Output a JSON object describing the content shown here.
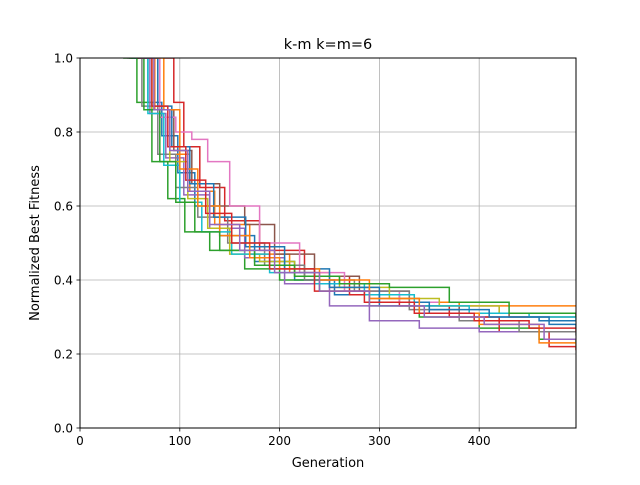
{
  "chart_data": {
    "type": "line",
    "title": "k-m k=m=6",
    "xlabel": "Generation",
    "ylabel": "Normalized Best Fitness",
    "xlim": [
      0,
      497
    ],
    "ylim": [
      0.0,
      1.0
    ],
    "xticks": [
      0,
      100,
      200,
      300,
      400
    ],
    "yticks": [
      0.0,
      0.2,
      0.4,
      0.6,
      0.8,
      1.0
    ],
    "xtick_labels": [
      "0",
      "100",
      "200",
      "300",
      "400"
    ],
    "ytick_labels": [
      "0.0",
      "0.2",
      "0.4",
      "0.6",
      "0.8",
      "1.0"
    ],
    "grid": true,
    "legend": "none",
    "line_style": "step",
    "series": [
      {
        "color": "#1f77b4",
        "points": [
          [
            52,
            1.0
          ],
          [
            68,
            0.88
          ],
          [
            82,
            0.79
          ],
          [
            98,
            0.69
          ],
          [
            115,
            0.6
          ],
          [
            140,
            0.52
          ],
          [
            175,
            0.45
          ],
          [
            215,
            0.4
          ],
          [
            255,
            0.36
          ],
          [
            300,
            0.33
          ],
          [
            350,
            0.31
          ],
          [
            400,
            0.3
          ],
          [
            460,
            0.29
          ],
          [
            497,
            0.29
          ]
        ]
      },
      {
        "color": "#ff7f0e",
        "points": [
          [
            60,
            1.0
          ],
          [
            75,
            0.86
          ],
          [
            90,
            0.74
          ],
          [
            110,
            0.64
          ],
          [
            135,
            0.55
          ],
          [
            170,
            0.47
          ],
          [
            210,
            0.42
          ],
          [
            250,
            0.38
          ],
          [
            290,
            0.35
          ],
          [
            340,
            0.34
          ],
          [
            380,
            0.33
          ],
          [
            440,
            0.33
          ],
          [
            497,
            0.33
          ]
        ]
      },
      {
        "color": "#2ca02c",
        "points": [
          [
            44,
            1.0
          ],
          [
            57,
            0.88
          ],
          [
            72,
            0.72
          ],
          [
            88,
            0.62
          ],
          [
            105,
            0.53
          ],
          [
            130,
            0.48
          ],
          [
            165,
            0.43
          ],
          [
            200,
            0.4
          ],
          [
            240,
            0.37
          ],
          [
            290,
            0.33
          ],
          [
            340,
            0.3
          ],
          [
            400,
            0.27
          ],
          [
            460,
            0.24
          ],
          [
            497,
            0.23
          ]
        ]
      },
      {
        "color": "#d62728",
        "points": [
          [
            84,
            1.0
          ],
          [
            94,
            0.88
          ],
          [
            104,
            0.76
          ],
          [
            120,
            0.65
          ],
          [
            145,
            0.56
          ],
          [
            180,
            0.48
          ],
          [
            225,
            0.41
          ],
          [
            270,
            0.36
          ],
          [
            320,
            0.33
          ],
          [
            370,
            0.3
          ],
          [
            420,
            0.26
          ],
          [
            470,
            0.22
          ],
          [
            497,
            0.21
          ]
        ]
      },
      {
        "color": "#9467bd",
        "points": [
          [
            56,
            1.0
          ],
          [
            70,
            0.85
          ],
          [
            86,
            0.73
          ],
          [
            104,
            0.63
          ],
          [
            130,
            0.54
          ],
          [
            165,
            0.46
          ],
          [
            205,
            0.39
          ],
          [
            250,
            0.33
          ],
          [
            290,
            0.29
          ],
          [
            340,
            0.27
          ],
          [
            400,
            0.26
          ],
          [
            460,
            0.26
          ],
          [
            497,
            0.26
          ]
        ]
      },
      {
        "color": "#8c564b",
        "points": [
          [
            62,
            1.0
          ],
          [
            78,
            0.86
          ],
          [
            94,
            0.75
          ],
          [
            112,
            0.66
          ],
          [
            140,
            0.6
          ],
          [
            165,
            0.55
          ],
          [
            195,
            0.47
          ],
          [
            235,
            0.41
          ],
          [
            280,
            0.37
          ],
          [
            330,
            0.33
          ],
          [
            380,
            0.31
          ],
          [
            430,
            0.3
          ],
          [
            497,
            0.3
          ]
        ]
      },
      {
        "color": "#e377c2",
        "points": [
          [
            66,
            1.0
          ],
          [
            80,
            0.84
          ],
          [
            96,
            0.8
          ],
          [
            112,
            0.78
          ],
          [
            128,
            0.72
          ],
          [
            150,
            0.6
          ],
          [
            180,
            0.5
          ],
          [
            220,
            0.42
          ],
          [
            265,
            0.37
          ],
          [
            320,
            0.34
          ],
          [
            360,
            0.33
          ],
          [
            420,
            0.31
          ],
          [
            497,
            0.31
          ]
        ]
      },
      {
        "color": "#7f7f7f",
        "points": [
          [
            48,
            1.0
          ],
          [
            62,
            0.87
          ],
          [
            78,
            0.74
          ],
          [
            96,
            0.65
          ],
          [
            118,
            0.57
          ],
          [
            148,
            0.5
          ],
          [
            185,
            0.44
          ],
          [
            225,
            0.4
          ],
          [
            275,
            0.37
          ],
          [
            330,
            0.32
          ],
          [
            380,
            0.29
          ],
          [
            440,
            0.26
          ],
          [
            497,
            0.25
          ]
        ]
      },
      {
        "color": "#bcbd22",
        "points": [
          [
            58,
            1.0
          ],
          [
            72,
            0.86
          ],
          [
            90,
            0.72
          ],
          [
            108,
            0.62
          ],
          [
            128,
            0.54
          ],
          [
            150,
            0.47
          ],
          [
            180,
            0.45
          ],
          [
            215,
            0.41
          ],
          [
            260,
            0.38
          ],
          [
            310,
            0.35
          ],
          [
            360,
            0.33
          ],
          [
            420,
            0.31
          ],
          [
            497,
            0.3
          ]
        ]
      },
      {
        "color": "#17becf",
        "points": [
          [
            54,
            1.0
          ],
          [
            68,
            0.85
          ],
          [
            84,
            0.71
          ],
          [
            100,
            0.61
          ],
          [
            122,
            0.53
          ],
          [
            152,
            0.47
          ],
          [
            190,
            0.42
          ],
          [
            235,
            0.39
          ],
          [
            285,
            0.36
          ],
          [
            335,
            0.33
          ],
          [
            390,
            0.31
          ],
          [
            450,
            0.3
          ],
          [
            497,
            0.29
          ]
        ]
      },
      {
        "color": "#1f77b4",
        "points": [
          [
            64,
            1.0
          ],
          [
            78,
            0.87
          ],
          [
            92,
            0.76
          ],
          [
            110,
            0.66
          ],
          [
            134,
            0.57
          ],
          [
            166,
            0.49
          ],
          [
            205,
            0.43
          ],
          [
            250,
            0.38
          ],
          [
            300,
            0.34
          ],
          [
            350,
            0.32
          ],
          [
            410,
            0.3
          ],
          [
            470,
            0.28
          ],
          [
            497,
            0.27
          ]
        ]
      },
      {
        "color": "#ff7f0e",
        "points": [
          [
            70,
            1.0
          ],
          [
            84,
            0.86
          ],
          [
            100,
            0.7
          ],
          [
            118,
            0.6
          ],
          [
            140,
            0.52
          ],
          [
            170,
            0.46
          ],
          [
            200,
            0.43
          ],
          [
            240,
            0.4
          ],
          [
            290,
            0.35
          ],
          [
            340,
            0.31
          ],
          [
            400,
            0.28
          ],
          [
            460,
            0.23
          ],
          [
            497,
            0.22
          ]
        ]
      },
      {
        "color": "#2ca02c",
        "points": [
          [
            50,
            1.0
          ],
          [
            64,
            0.86
          ],
          [
            80,
            0.72
          ],
          [
            96,
            0.61
          ],
          [
            115,
            0.53
          ],
          [
            140,
            0.48
          ],
          [
            175,
            0.44
          ],
          [
            215,
            0.41
          ],
          [
            260,
            0.39
          ],
          [
            310,
            0.38
          ],
          [
            370,
            0.34
          ],
          [
            430,
            0.31
          ],
          [
            497,
            0.3
          ]
        ]
      },
      {
        "color": "#d62728",
        "points": [
          [
            58,
            1.0
          ],
          [
            72,
            0.87
          ],
          [
            88,
            0.76
          ],
          [
            106,
            0.67
          ],
          [
            126,
            0.58
          ],
          [
            152,
            0.5
          ],
          [
            190,
            0.43
          ],
          [
            235,
            0.37
          ],
          [
            285,
            0.34
          ],
          [
            335,
            0.31
          ],
          [
            395,
            0.29
          ],
          [
            450,
            0.27
          ],
          [
            497,
            0.26
          ]
        ]
      },
      {
        "color": "#9467bd",
        "points": [
          [
            60,
            1.0
          ],
          [
            74,
            0.86
          ],
          [
            90,
            0.75
          ],
          [
            108,
            0.64
          ],
          [
            130,
            0.55
          ],
          [
            160,
            0.48
          ],
          [
            195,
            0.42
          ],
          [
            240,
            0.37
          ],
          [
            290,
            0.33
          ],
          [
            345,
            0.3
          ],
          [
            405,
            0.28
          ],
          [
            465,
            0.24
          ],
          [
            497,
            0.24
          ]
        ]
      }
    ]
  }
}
